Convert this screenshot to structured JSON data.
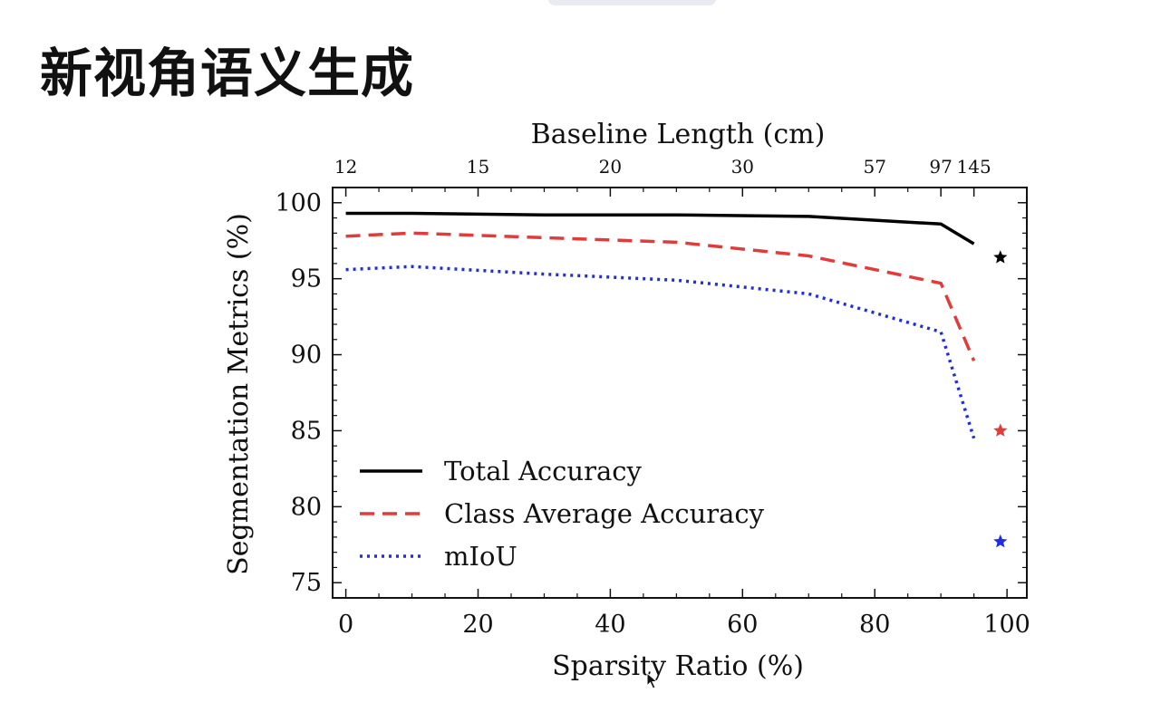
{
  "page": {
    "title": "新视角语义生成"
  },
  "chart_data": {
    "type": "line",
    "title": "",
    "xlabel": "Sparsity Ratio (%)",
    "ylabel": "Segmentation Metrics (%)",
    "top_xlabel": "Baseline Length (cm)",
    "xlim": [
      -2,
      103
    ],
    "ylim": [
      74,
      101
    ],
    "xticks": [
      0,
      20,
      40,
      60,
      80,
      100
    ],
    "yticks": [
      75,
      80,
      85,
      90,
      95,
      100
    ],
    "top_ticks": [
      {
        "x": 0,
        "label": "12"
      },
      {
        "x": 20,
        "label": "15"
      },
      {
        "x": 40,
        "label": "20"
      },
      {
        "x": 60,
        "label": "30"
      },
      {
        "x": 80,
        "label": "57"
      },
      {
        "x": 90,
        "label": "97"
      },
      {
        "x": 95,
        "label": "145"
      }
    ],
    "grid": false,
    "legend_position": "lower-left",
    "series": [
      {
        "name": "Total Accuracy",
        "color": "#000000",
        "style": "solid",
        "x": [
          0,
          10,
          30,
          50,
          70,
          90,
          95
        ],
        "y": [
          99.3,
          99.3,
          99.2,
          99.2,
          99.1,
          98.6,
          97.3
        ],
        "marker": {
          "x": 99,
          "y": 96.4
        }
      },
      {
        "name": "Class Average Accuracy",
        "color": "#e03c3c",
        "style": "dashed",
        "x": [
          0,
          10,
          30,
          50,
          70,
          90,
          95
        ],
        "y": [
          97.8,
          98.0,
          97.7,
          97.4,
          96.5,
          94.7,
          89.6
        ],
        "marker": {
          "x": 99,
          "y": 85.0
        }
      },
      {
        "name": "mIoU",
        "color": "#1f2ee0",
        "style": "dotted",
        "x": [
          0,
          10,
          30,
          50,
          70,
          90,
          95
        ],
        "y": [
          95.6,
          95.8,
          95.3,
          94.9,
          94.0,
          91.5,
          84.5
        ],
        "marker": {
          "x": 99,
          "y": 77.7
        }
      }
    ]
  }
}
